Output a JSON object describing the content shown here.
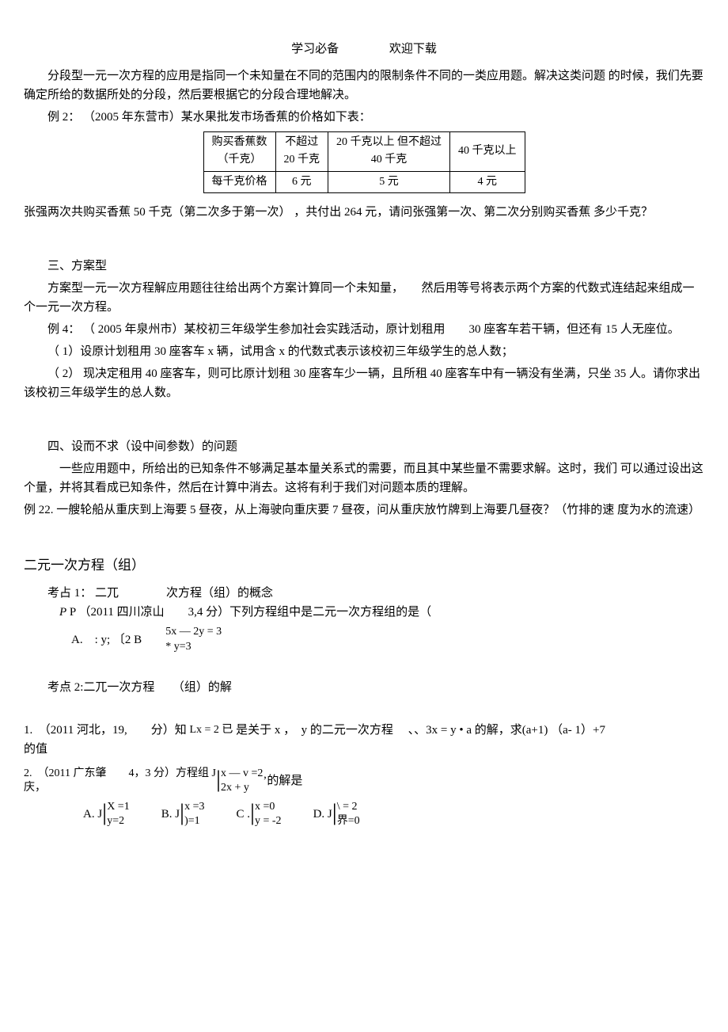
{
  "header": {
    "left": "学习必备",
    "right": "欢迎下载"
  },
  "intro": "分段型一元一次方程的应用是指同一个未知量在不同的范围内的限制条件不同的一类应用题。解决这类问题 的时候，我们先要确定所给的数据所处的分段，然后要根据它的分段合理地解决。",
  "ex2_label": "例 2： （2005 年东营市）某水果批发市场香蕉的价格如下表：",
  "table": {
    "r1c1a": "购买香蕉数",
    "r1c1b": "（千克）",
    "r1c2a": "不超过",
    "r1c2b": "20 千克",
    "r1c3a": "20 千克以上 但不超过",
    "r1c3b": "40 千克",
    "r1c4": "40 千克以上",
    "r2c1": "每千克价格",
    "r2c2": "6 元",
    "r2c3": "5 元",
    "r2c4": "4 元"
  },
  "ex2_q": "张强两次共购买香蕉 50 千克（第二次多于第一次） ，共付出 264 元，请问张强第一次、第二次分别购买香蕉 多少千克？",
  "sec3_title": "三、方案型",
  "sec3_desc": "方案型一元一次方程解应用题往往给出两个方案计算同一个未知量，　　然后用等号将表示两个方案的代数式连结起来组成一个一元一次方程。",
  "ex4_label": "例 4： （ 2005 年泉州市）某校初三年级学生参加社会实践活动，原计划租用　　30 座客车若干辆，但还有 15 人无座位。",
  "ex4_q1": "（ 1）设原计划租用 30 座客车 x 辆，试用含 x 的代数式表示该校初三年级学生的总人数；",
  "ex4_q2": "（ 2） 现决定租用 40 座客车，则可比原计划租 30 座客车少一辆，且所租 40 座客车中有一辆没有坐满，只坐 35 人。请你求出该校初三年级学生的总人数。",
  "sec4_title": "四、设而不求（设中间参数）的问题",
  "sec4_desc": "一些应用题中，所给出的已知条件不够满足基本量关系式的需要，而且其中某些量不需要求解。这时，我们 可以通过设出这个量，并将其看成已知条件，然后在计算中消去。这将有利于我们对问题本质的理解。",
  "ex22": "例 22. 一艘轮船从重庆到上海要 5 昼夜，从上海驶向重庆要 7 昼夜，问从重庆放竹牌到上海要几昼夜？（竹排的速 度为水的流速）",
  "part2_title": "二元一次方程（组）",
  "kp1_label": "考占 1：  二兀　　　　次方程（组）的概念",
  "kp1_q": "P  （2011 四川凉山　　3,4 分）下列方程组中是二元一次方程组的是（",
  "kp1_sys_top": "5x — 2y = 3",
  "kp1_sys_bot": "* y=3",
  "kp1_optA": "A.　: y;  〔2 B",
  "kp2_label": "考点 2:二兀一次方程　　（组）的解",
  "q1_pre": "1.　（2011 河北，19,　　分）知",
  "q1_sys": "Lx = 2 已",
  "q1_post": "是关于 x ，　y 的二元一次方程　 、、3x = y • a 的解，求(a+1) （a- 1）+7",
  "q1_tail": "的值",
  "q2_pre": "2.　（2011 广东肇　　4，3 分）方程组 J",
  "q2_city": "庆，",
  "q2_sys_top": "x — v =2",
  "q2_sys_bot": "2x + y",
  "q2_post": "’的解是",
  "opts": {
    "A_label": "A. J",
    "A_top": "X =1",
    "A_bot": "y=2",
    "B_label": "B. J",
    "B_top": "x =3",
    "B_bot": ")=1",
    "C_label": "C .",
    "C_top": "x =0",
    "C_bot": "y = -2",
    "D_label": "D. J",
    "D_top": "\\ = 2",
    "D_bot": "界=0"
  }
}
